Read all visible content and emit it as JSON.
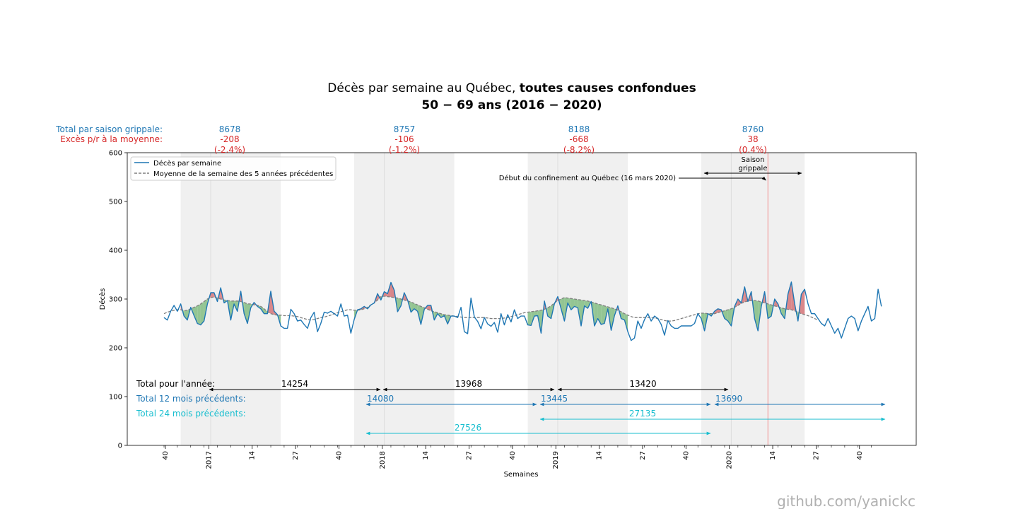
{
  "chart_data": {
    "type": "line",
    "title_plain": "Décès par semaine au Québec, ",
    "title_bold": "toutes causes confondues",
    "subtitle": "50 − 69 ans (2016 − 2020)",
    "xlabel": "Semaines",
    "ylabel": "Décès",
    "ylim": [
      0,
      600
    ],
    "yticks": [
      "0",
      "100",
      "200",
      "300",
      "400",
      "500",
      "600"
    ],
    "xticks": [
      "40",
      "2017",
      "14",
      "27",
      "40",
      "2018",
      "14",
      "27",
      "40",
      "2019",
      "14",
      "27",
      "40",
      "2020",
      "14",
      "27",
      "40"
    ],
    "legend": {
      "position": "top-left",
      "entries": [
        "Décès par semaine",
        "Moyenne de la semaine des 5 années précédentes"
      ]
    },
    "series": [
      {
        "name": "Décès par semaine",
        "color": "#1f77b4",
        "values": [
          262,
          257,
          275,
          287,
          275,
          290,
          265,
          257,
          283,
          266,
          250,
          247,
          255,
          290,
          313,
          313,
          295,
          323,
          292,
          297,
          257,
          290,
          275,
          316,
          270,
          250,
          282,
          293,
          285,
          280,
          270,
          270,
          316,
          275,
          268,
          245,
          240,
          240,
          279,
          270,
          255,
          257,
          248,
          240,
          262,
          273,
          233,
          250,
          273,
          271,
          275,
          270,
          265,
          290,
          265,
          267,
          230,
          258,
          278,
          280,
          285,
          280,
          288,
          292,
          311,
          298,
          315,
          311,
          334,
          318,
          274,
          286,
          313,
          298,
          273,
          280,
          275,
          248,
          279,
          287,
          287,
          257,
          270,
          262,
          266,
          249,
          265,
          265,
          262,
          283,
          233,
          229,
          302,
          263,
          254,
          239,
          262,
          249,
          244,
          252,
          232,
          270,
          247,
          268,
          253,
          278,
          260,
          265,
          265,
          247,
          246,
          265,
          266,
          230,
          296,
          265,
          260,
          290,
          305,
          280,
          255,
          292,
          278,
          285,
          282,
          245,
          286,
          281,
          295,
          245,
          260,
          248,
          250,
          280,
          236,
          266,
          286,
          260,
          257,
          233,
          215,
          220,
          255,
          240,
          258,
          270,
          255,
          265,
          260,
          248,
          226,
          256,
          245,
          240,
          240,
          245,
          245,
          245,
          245,
          250,
          270,
          260,
          235,
          270,
          265,
          275,
          280,
          278,
          260,
          255,
          245,
          285,
          300,
          292,
          325,
          295,
          315,
          260,
          235,
          285,
          315,
          260,
          265,
          300,
          290,
          270,
          260,
          310,
          335,
          290,
          255,
          310,
          320,
          290,
          270,
          270,
          260,
          250,
          245,
          260,
          245,
          230,
          240,
          220,
          240,
          260,
          265,
          260,
          235,
          255,
          270,
          285,
          255,
          260,
          320,
          285
        ]
      },
      {
        "name": "Moyenne de la semaine des 5 années précédentes",
        "color": "#7f7f7f",
        "dashed": true,
        "values": [
          270,
          273,
          275,
          277,
          278,
          278,
          276,
          277,
          280,
          283,
          286,
          290,
          295,
          300,
          303,
          304,
          302,
          300,
          298,
          297,
          296,
          296,
          296,
          295,
          293,
          290,
          290,
          288,
          287,
          285,
          280,
          274,
          270,
          268,
          267,
          267,
          266,
          266,
          266,
          265,
          264,
          262,
          260,
          258,
          257,
          258,
          260,
          262,
          263,
          265,
          267,
          270,
          272,
          274,
          276,
          278,
          278,
          277,
          277,
          278,
          280,
          283,
          288,
          292,
          298,
          305,
          306,
          305,
          304,
          303,
          302,
          300,
          298,
          296,
          294,
          291,
          288,
          285,
          282,
          279,
          276,
          274,
          272,
          270,
          268,
          267,
          266,
          265,
          264,
          263,
          262,
          262,
          262,
          262,
          262,
          262,
          262,
          261,
          260,
          260,
          260,
          260,
          261,
          262,
          264,
          266,
          268,
          270,
          272,
          273,
          274,
          275,
          276,
          277,
          279,
          282,
          286,
          292,
          297,
          300,
          303,
          302,
          301,
          300,
          299,
          298,
          297,
          296,
          294,
          292,
          290,
          288,
          286,
          284,
          282,
          280,
          277,
          274,
          270,
          267,
          264,
          262,
          262,
          262,
          262,
          262,
          262,
          261,
          260,
          258,
          256,
          255,
          255,
          256,
          258,
          260,
          262,
          264,
          266,
          268,
          270,
          271,
          271,
          270,
          270,
          270,
          272,
          274,
          276,
          278,
          280,
          283,
          287,
          291,
          294,
          296,
          297,
          297,
          296,
          294,
          292,
          290,
          288,
          286,
          284,
          282,
          280,
          279,
          278,
          276,
          273,
          270,
          268,
          266,
          263,
          260,
          257
        ]
      }
    ],
    "flu_seasons": [
      {
        "total": "8678",
        "excess": "-208",
        "excess_pct": "(-2.4%)"
      },
      {
        "total": "8757",
        "excess": "-106",
        "excess_pct": "(-1.2%)"
      },
      {
        "total": "8188",
        "excess": "-668",
        "excess_pct": "(-8.2%)"
      },
      {
        "total": "8760",
        "excess": "38",
        "excess_pct": "(0.4%)"
      }
    ],
    "row_labels": {
      "flu_total": "Total par saison grippale:",
      "flu_excess": "Excès p/r à la moyenne:"
    },
    "annotations": {
      "lockdown": "Début du confinement au Québec (16 mars 2020)",
      "flu_season_line1": "Saison",
      "flu_season_line2": "grippale"
    },
    "summaries": {
      "year_label": "Total pour l'année:",
      "year_values": [
        "14254",
        "13968",
        "13420"
      ],
      "m12_label": "Total 12 mois précédents:",
      "m12_values": [
        "14080",
        "13445",
        "13690"
      ],
      "m24_label": "Total 24 mois précédents:",
      "m24_values": [
        "27526",
        "27135"
      ]
    },
    "watermark": "github.com/yanickc",
    "colors": {
      "deaths": "#1f77b4",
      "average": "#7f7f7f",
      "excess_fill": "#d9878a",
      "deficit_fill": "#93c593",
      "flu_band": "#f0f0f0",
      "lockdown_line": "#f2a4a4",
      "cyan": "#17becf",
      "red": "#d62728"
    }
  }
}
